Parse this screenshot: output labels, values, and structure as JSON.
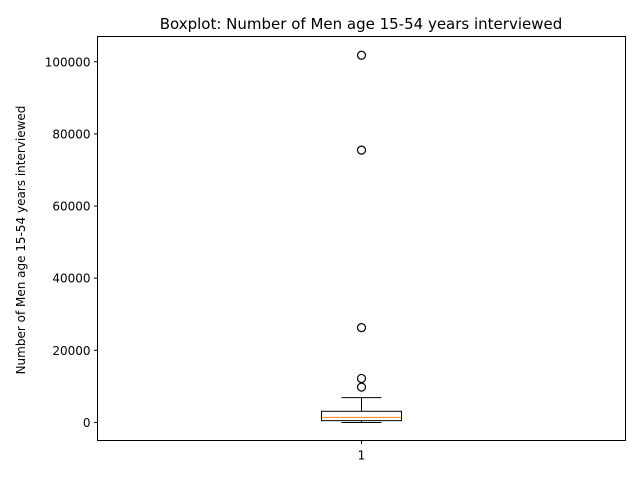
{
  "chart_data": {
    "type": "box",
    "title": "Boxplot: Number of Men age 15-54 years interviewed",
    "xlabel": "",
    "ylabel": "Number of Men age 15-54 years interviewed",
    "categories": [
      "1"
    ],
    "ylim": [
      -5000,
      107000
    ],
    "yticks": [
      0,
      20000,
      40000,
      60000,
      80000,
      100000
    ],
    "ytick_labels": [
      "0",
      "20000",
      "40000",
      "60000",
      "80000",
      "100000"
    ],
    "grid": false,
    "box": {
      "whisker_low": 0,
      "q1": 500,
      "median": 1400,
      "q3": 3100,
      "whisker_high": 6900,
      "outliers": [
        9800,
        12200,
        26300,
        75500,
        101800
      ]
    },
    "colors": {
      "box": "#000000",
      "median": "#ff7f0e",
      "outlier": "#000000"
    }
  }
}
